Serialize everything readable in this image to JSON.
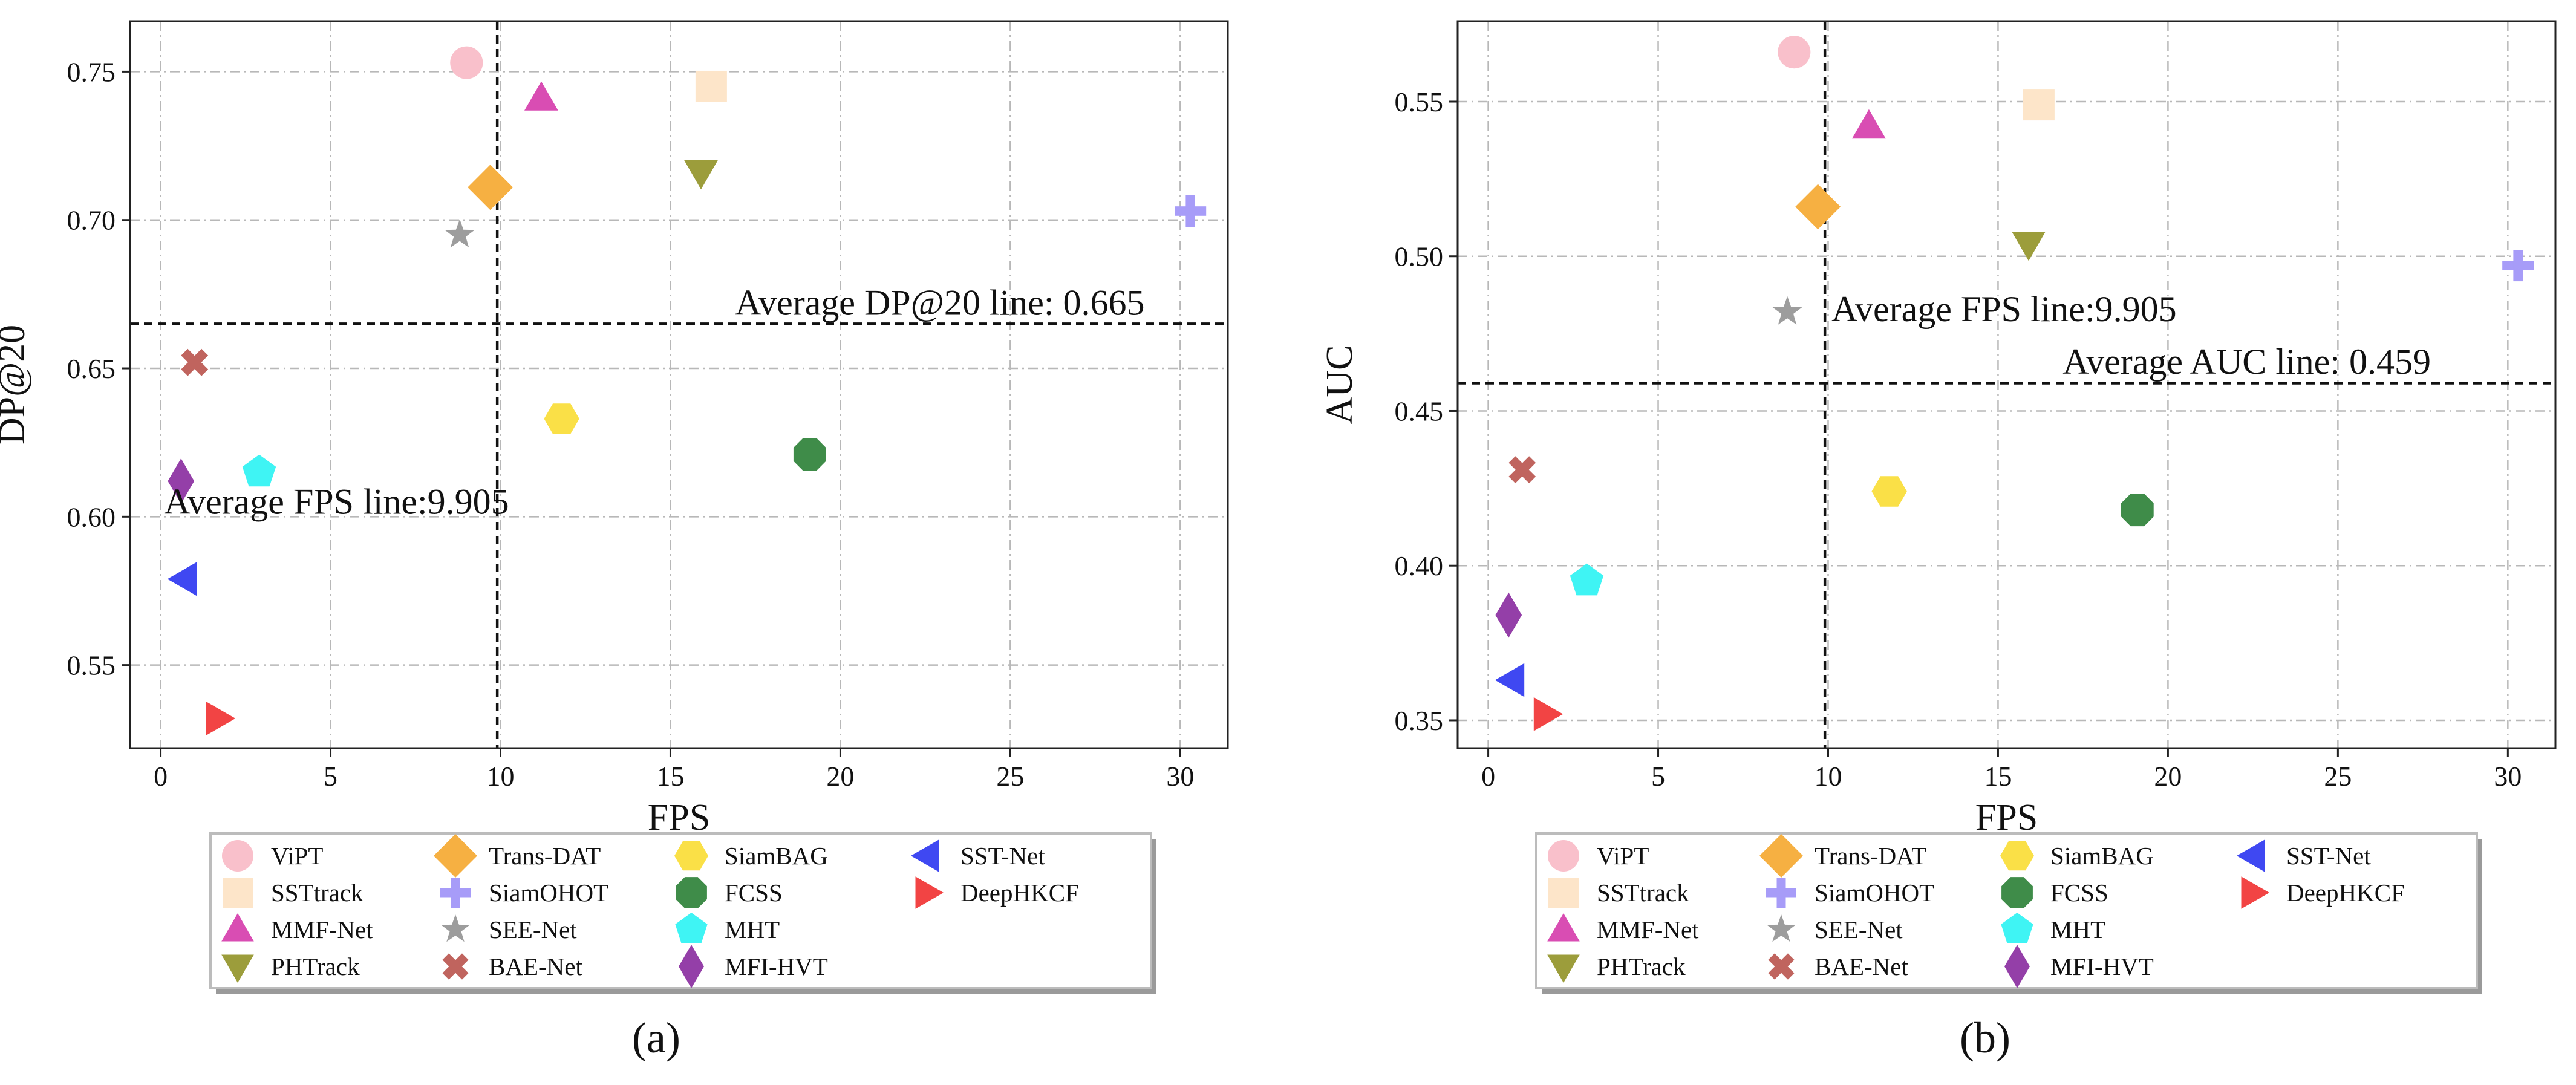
{
  "chart_data": [
    {
      "type": "scatter",
      "panel_label": "(a)",
      "xlabel": "FPS",
      "ylabel": "DP@20",
      "xlim": [
        -0.9,
        31.4
      ],
      "ylim": [
        0.522,
        0.767
      ],
      "xticks": [
        0,
        5,
        10,
        15,
        20,
        25,
        30
      ],
      "xtick_labels": [
        "0",
        "5",
        "10",
        "15",
        "20",
        "25",
        "30"
      ],
      "yticks": [
        0.55,
        0.6,
        0.65,
        0.7,
        0.75
      ],
      "ytick_labels": [
        "0.55",
        "0.60",
        "0.65",
        "0.70",
        "0.75"
      ],
      "grid": true,
      "avg_fps": 9.905,
      "avg_y": 0.665,
      "avg_fps_label": "Average FPS line:9.905",
      "avg_y_label": "Average DP@20 line: 0.665",
      "avg_fps_label_at": [
        0.1,
        0.601
      ],
      "avg_y_label_at": [
        16.9,
        0.668
      ],
      "points": [
        {
          "name": "ViPT",
          "x": 9.0,
          "y": 0.753,
          "color": "#f9c0cb",
          "marker": "circle"
        },
        {
          "name": "SSTtrack",
          "x": 16.2,
          "y": 0.745,
          "color": "#fde5c9",
          "marker": "square"
        },
        {
          "name": "MMF-Net",
          "x": 11.2,
          "y": 0.741,
          "color": "#d94db3",
          "marker": "triangle-up"
        },
        {
          "name": "PHTrack",
          "x": 15.9,
          "y": 0.716,
          "color": "#9c9d3b",
          "marker": "triangle-down"
        },
        {
          "name": "Trans-DAT",
          "x": 9.7,
          "y": 0.711,
          "color": "#f6b042",
          "marker": "diamond"
        },
        {
          "name": "SiamOHOT",
          "x": 30.3,
          "y": 0.703,
          "color": "#a79cf8",
          "marker": "plus"
        },
        {
          "name": "SEE-Net",
          "x": 8.8,
          "y": 0.695,
          "color": "#9d9d9d",
          "marker": "star"
        },
        {
          "name": "BAE-Net",
          "x": 1.0,
          "y": 0.652,
          "color": "#c0645e",
          "marker": "x"
        },
        {
          "name": "SiamBAG",
          "x": 11.8,
          "y": 0.633,
          "color": "#fae047",
          "marker": "hexagon"
        },
        {
          "name": "FCSS",
          "x": 19.1,
          "y": 0.621,
          "color": "#3f8c49",
          "marker": "octagon"
        },
        {
          "name": "MHT",
          "x": 2.9,
          "y": 0.615,
          "color": "#3ff4f4",
          "marker": "pentagon"
        },
        {
          "name": "MFI-HVT",
          "x": 0.6,
          "y": 0.612,
          "color": "#943fa8",
          "marker": "thin-diamond"
        },
        {
          "name": "SST-Net",
          "x": 0.7,
          "y": 0.579,
          "color": "#3f48f2",
          "marker": "triangle-left"
        },
        {
          "name": "DeepHKCF",
          "x": 1.7,
          "y": 0.532,
          "color": "#f24444",
          "marker": "triangle-right"
        }
      ]
    },
    {
      "type": "scatter",
      "panel_label": "(b)",
      "xlabel": "FPS",
      "ylabel": "AUC",
      "xlim": [
        -0.9,
        31.4
      ],
      "ylim": [
        0.341,
        0.576
      ],
      "xticks": [
        0,
        5,
        10,
        15,
        20,
        25,
        30
      ],
      "xtick_labels": [
        "0",
        "5",
        "10",
        "15",
        "20",
        "25",
        "30"
      ],
      "yticks": [
        0.35,
        0.4,
        0.45,
        0.5,
        0.55
      ],
      "ytick_labels": [
        "0.35",
        "0.40",
        "0.45",
        "0.50",
        "0.55"
      ],
      "grid": true,
      "avg_fps": 9.905,
      "avg_y": 0.459,
      "avg_fps_label": "Average FPS line:9.905",
      "avg_y_label": "Average AUC line: 0.459",
      "avg_fps_label_at": [
        10.1,
        0.479
      ],
      "avg_y_label_at": [
        16.9,
        0.462
      ],
      "points": [
        {
          "name": "ViPT",
          "x": 9.0,
          "y": 0.566,
          "color": "#f9c0cb",
          "marker": "circle"
        },
        {
          "name": "SSTtrack",
          "x": 16.2,
          "y": 0.549,
          "color": "#fde5c9",
          "marker": "square"
        },
        {
          "name": "MMF-Net",
          "x": 11.2,
          "y": 0.542,
          "color": "#d94db3",
          "marker": "triangle-up"
        },
        {
          "name": "Trans-DAT",
          "x": 9.7,
          "y": 0.516,
          "color": "#f6b042",
          "marker": "diamond"
        },
        {
          "name": "PHTrack",
          "x": 15.9,
          "y": 0.504,
          "color": "#9c9d3b",
          "marker": "triangle-down"
        },
        {
          "name": "SiamOHOT",
          "x": 30.3,
          "y": 0.497,
          "color": "#a79cf8",
          "marker": "plus"
        },
        {
          "name": "SEE-Net",
          "x": 8.8,
          "y": 0.482,
          "color": "#9d9d9d",
          "marker": "star"
        },
        {
          "name": "BAE-Net",
          "x": 1.0,
          "y": 0.431,
          "color": "#c0645e",
          "marker": "x"
        },
        {
          "name": "SiamBAG",
          "x": 11.8,
          "y": 0.424,
          "color": "#fae047",
          "marker": "hexagon"
        },
        {
          "name": "FCSS",
          "x": 19.1,
          "y": 0.418,
          "color": "#3f8c49",
          "marker": "octagon"
        },
        {
          "name": "MHT",
          "x": 2.9,
          "y": 0.395,
          "color": "#3ff4f4",
          "marker": "pentagon"
        },
        {
          "name": "MFI-HVT",
          "x": 0.6,
          "y": 0.384,
          "color": "#943fa8",
          "marker": "thin-diamond"
        },
        {
          "name": "SST-Net",
          "x": 0.7,
          "y": 0.363,
          "color": "#3f48f2",
          "marker": "triangle-left"
        },
        {
          "name": "DeepHKCF",
          "x": 1.7,
          "y": 0.352,
          "color": "#f24444",
          "marker": "triangle-right"
        }
      ]
    }
  ],
  "legend": {
    "columns": 4,
    "entries": [
      {
        "name": "ViPT",
        "color": "#f9c0cb",
        "marker": "circle"
      },
      {
        "name": "SSTtrack",
        "color": "#fde5c9",
        "marker": "square"
      },
      {
        "name": "MMF-Net",
        "color": "#d94db3",
        "marker": "triangle-up"
      },
      {
        "name": "PHTrack",
        "color": "#9c9d3b",
        "marker": "triangle-down"
      },
      {
        "name": "Trans-DAT",
        "color": "#f6b042",
        "marker": "diamond"
      },
      {
        "name": "SiamOHOT",
        "color": "#a79cf8",
        "marker": "plus"
      },
      {
        "name": "SEE-Net",
        "color": "#9d9d9d",
        "marker": "star"
      },
      {
        "name": "BAE-Net",
        "color": "#c0645e",
        "marker": "x"
      },
      {
        "name": "SiamBAG",
        "color": "#fae047",
        "marker": "hexagon"
      },
      {
        "name": "FCSS",
        "color": "#3f8c49",
        "marker": "octagon"
      },
      {
        "name": "MHT",
        "color": "#3ff4f4",
        "marker": "pentagon"
      },
      {
        "name": "MFI-HVT",
        "color": "#943fa8",
        "marker": "thin-diamond"
      },
      {
        "name": "SST-Net",
        "color": "#3f48f2",
        "marker": "triangle-left"
      },
      {
        "name": "DeepHKCF",
        "color": "#f24444",
        "marker": "triangle-right"
      }
    ]
  }
}
